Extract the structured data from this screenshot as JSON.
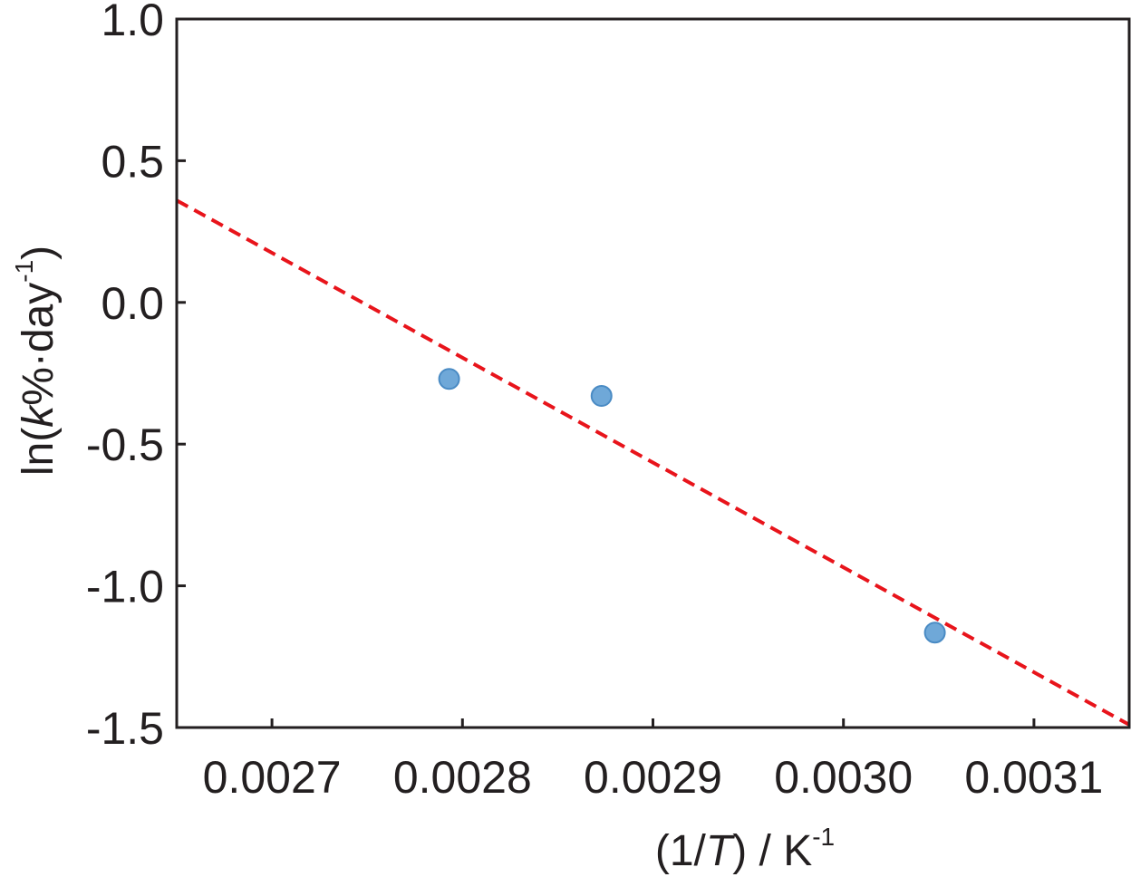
{
  "chart_data": {
    "type": "scatter",
    "xlabel": {
      "prefix": "(1/",
      "italic": "T",
      "suffix": ") / K",
      "sup": "-1"
    },
    "ylabel": {
      "prefix": "ln(",
      "italic": "k",
      "middle": "%·day",
      "sup": "-1",
      "suffix": ")"
    },
    "xlim": [
      0.00265,
      0.00315
    ],
    "ylim": [
      -1.5,
      1.0
    ],
    "xticks": [
      0.0027,
      0.0028,
      0.0029,
      0.003,
      0.0031
    ],
    "xtick_labels": [
      "0.0027",
      "0.0028",
      "0.0029",
      "0.0030",
      "0.0031"
    ],
    "yticks": [
      1.0,
      0.5,
      0.0,
      -0.5,
      -1.0,
      -1.5
    ],
    "ytick_labels": [
      "1.0",
      "0.5",
      "0.0",
      "-0.5",
      "-1.0",
      "-1.5"
    ],
    "grid": false,
    "series": [
      {
        "kind": "points",
        "color": "#6fa8d8",
        "edge_color": "#4a8bc4",
        "points": [
          {
            "x": 0.002793,
            "y": -0.27
          },
          {
            "x": 0.002873,
            "y": -0.33
          },
          {
            "x": 0.003048,
            "y": -1.165
          }
        ]
      },
      {
        "kind": "fit_line",
        "style": "dashed",
        "color": "#e8141b",
        "x": [
          0.00265,
          0.00315
        ],
        "y": [
          0.36,
          -1.49
        ]
      }
    ]
  }
}
